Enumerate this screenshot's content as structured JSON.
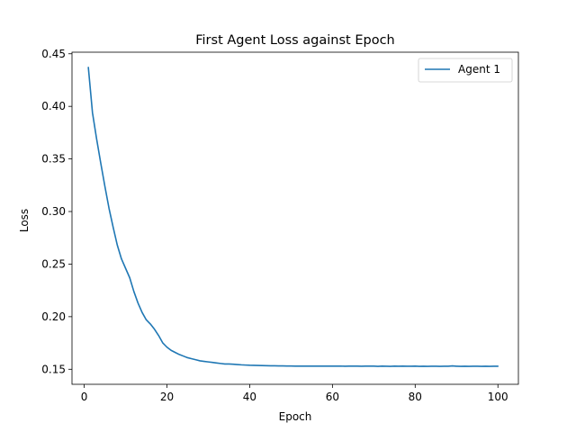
{
  "chart_data": {
    "type": "line",
    "title": "First Agent Loss against Epoch",
    "xlabel": "Epoch",
    "ylabel": "Loss",
    "xlim": [
      -2.95,
      104.95
    ],
    "ylim": [
      0.1357,
      0.4515
    ],
    "xticks": [
      0,
      20,
      40,
      60,
      80,
      100
    ],
    "xtick_labels": [
      "0",
      "20",
      "40",
      "60",
      "80",
      "100"
    ],
    "yticks": [
      0.15,
      0.2,
      0.25,
      0.3,
      0.35,
      0.4,
      0.45
    ],
    "ytick_labels": [
      "0.15",
      "0.20",
      "0.25",
      "0.30",
      "0.35",
      "0.40",
      "0.45"
    ],
    "grid": false,
    "legend_position": "upper right",
    "series": [
      {
        "name": "Agent 1",
        "color": "#1f77b4",
        "x": [
          1,
          2,
          3,
          4,
          5,
          6,
          7,
          8,
          9,
          10,
          11,
          12,
          13,
          14,
          15,
          16,
          17,
          18,
          19,
          20,
          21,
          22,
          23,
          24,
          25,
          26,
          27,
          28,
          29,
          30,
          31,
          32,
          33,
          34,
          35,
          36,
          37,
          38,
          39,
          40,
          41,
          42,
          43,
          44,
          45,
          46,
          47,
          48,
          49,
          50,
          51,
          52,
          53,
          54,
          55,
          56,
          57,
          58,
          59,
          60,
          61,
          62,
          63,
          64,
          65,
          66,
          67,
          68,
          69,
          70,
          71,
          72,
          73,
          74,
          75,
          76,
          77,
          78,
          79,
          80,
          81,
          82,
          83,
          84,
          85,
          86,
          87,
          88,
          89,
          90,
          91,
          92,
          93,
          94,
          95,
          96,
          97,
          98,
          99,
          100
        ],
        "values": [
          0.437,
          0.394,
          0.369,
          0.346,
          0.324,
          0.303,
          0.285,
          0.268,
          0.255,
          0.246,
          0.237,
          0.224,
          0.213,
          0.204,
          0.197,
          0.193,
          0.188,
          0.182,
          0.175,
          0.171,
          0.168,
          0.166,
          0.164,
          0.1625,
          0.161,
          0.16,
          0.159,
          0.158,
          0.1575,
          0.157,
          0.1565,
          0.156,
          0.1555,
          0.155,
          0.155,
          0.1548,
          0.1545,
          0.1542,
          0.154,
          0.1538,
          0.1537,
          0.1536,
          0.1535,
          0.1534,
          0.1533,
          0.1533,
          0.1532,
          0.1532,
          0.1531,
          0.1531,
          0.153,
          0.153,
          0.153,
          0.153,
          0.153,
          0.153,
          0.153,
          0.153,
          0.153,
          0.153,
          0.153,
          0.153,
          0.1529,
          0.153,
          0.153,
          0.153,
          0.1529,
          0.153,
          0.153,
          0.153,
          0.1528,
          0.153,
          0.1529,
          0.1528,
          0.153,
          0.1529,
          0.153,
          0.1529,
          0.1529,
          0.153,
          0.1528,
          0.1529,
          0.1528,
          0.1529,
          0.1529,
          0.1528,
          0.1529,
          0.1529,
          0.1532,
          0.1529,
          0.1528,
          0.1529,
          0.1528,
          0.1529,
          0.1529,
          0.1528,
          0.1529,
          0.1528,
          0.1529,
          0.1529
        ]
      }
    ]
  }
}
